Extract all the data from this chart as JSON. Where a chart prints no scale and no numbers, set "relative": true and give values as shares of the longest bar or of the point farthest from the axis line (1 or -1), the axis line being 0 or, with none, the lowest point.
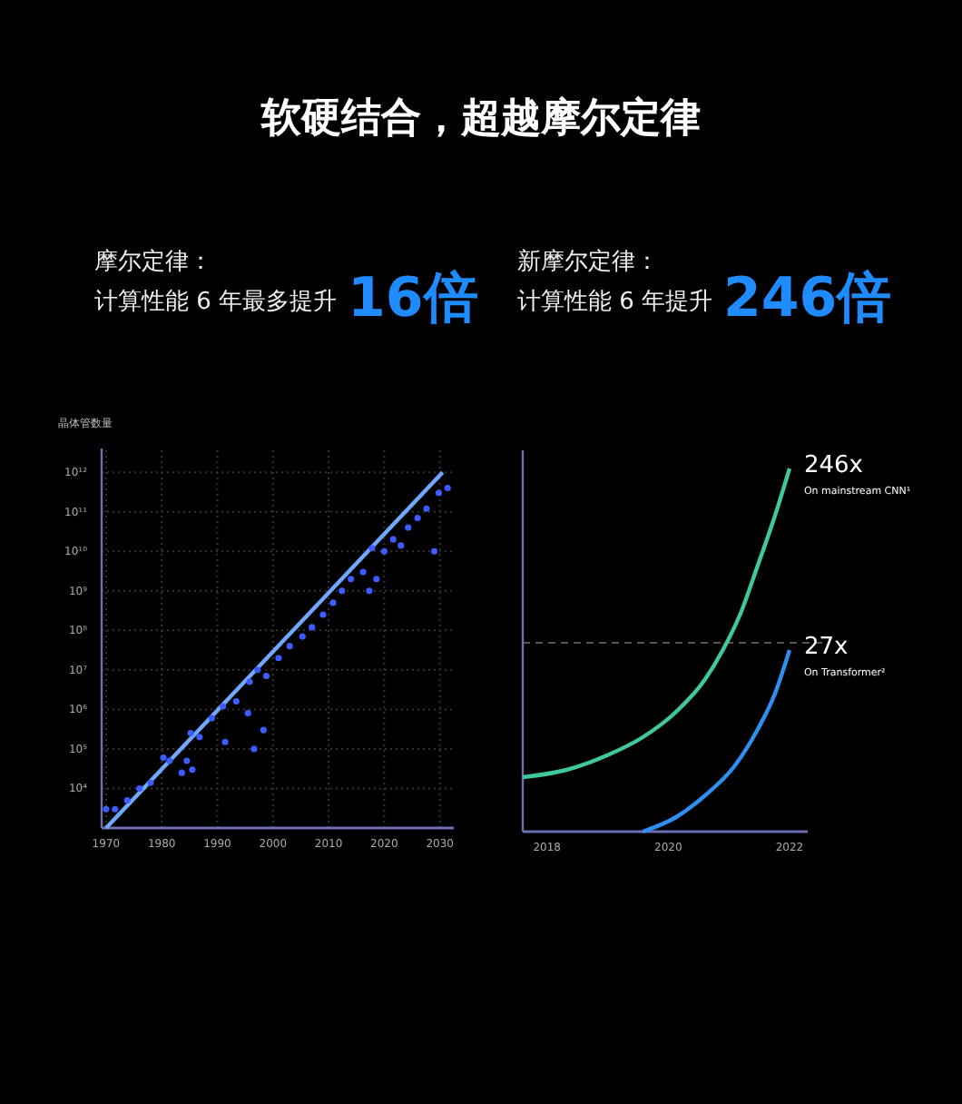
{
  "chart_data": [
    {
      "type": "scatter",
      "title": "软硬结合，超越摩尔定律",
      "annotations": [
        "摩尔定律：",
        "计算性能 6 年最多提升",
        "16倍"
      ],
      "ylabel": "晶体管数量",
      "log": "y",
      "grid": true,
      "xlim": [
        1969.2,
        2032.5
      ],
      "xticks": [
        1970,
        1980,
        1990,
        2000,
        2010,
        2020,
        2030
      ],
      "ylim": [
        1000.0,
        4000000000000.0
      ],
      "yticks": [
        {
          "value": 10000.0,
          "label": "10⁴"
        },
        {
          "value": 100000.0,
          "label": "10⁵"
        },
        {
          "value": 1000000.0,
          "label": "10⁶"
        },
        {
          "value": 10000000.0,
          "label": "10⁷"
        },
        {
          "value": 100000000.0,
          "label": "10⁸"
        },
        {
          "value": 1000000000.0,
          "label": "10⁹"
        },
        {
          "value": 10000000000.0,
          "label": "10¹⁰"
        },
        {
          "value": 100000000000.0,
          "label": "10¹¹"
        },
        {
          "value": 1000000000000.0,
          "label": "10¹²"
        }
      ],
      "series": [
        {
          "marker": "circle",
          "color": "#3d5cff",
          "x": [
            1970,
            1971.6,
            1973.8,
            1976,
            1978,
            1980.3,
            1981.4,
            1983.6,
            1984.5,
            1985.5,
            1985.2,
            1986.8,
            1989,
            1991,
            1991.4,
            1993.4,
            1995.5,
            1995.8,
            1996.6,
            1997.2,
            1998.3,
            1998.8,
            2001,
            2003,
            2005.3,
            2007,
            2009,
            2010.8,
            2012.4,
            2014,
            2016.2,
            2017.3,
            2017.8,
            2018.6,
            2020,
            2021.6,
            2023,
            2024.3,
            2026,
            2027.6,
            2029,
            2029.8,
            2031.4
          ],
          "values": [
            3000.0,
            3000.0,
            5000.0,
            10000.0,
            14000.0,
            60000.0,
            50000.0,
            25000.0,
            50000.0,
            30000.0,
            250000.0,
            200000.0,
            600000.0,
            1200000.0,
            150000.0,
            1600000.0,
            800000.0,
            5000000.0,
            100000.0,
            10000000.0,
            300000.0,
            7000000.0,
            20000000.0,
            40000000.0,
            70000000.0,
            120000000.0,
            250000000.0,
            500000000.0,
            1000000000.0,
            2000000000.0,
            3000000000.0,
            1000000000.0,
            12000000000.0,
            2000000000.0,
            10000000000.0,
            20000000000.0,
            14000000000.0,
            40000000000.0,
            70000000000.0,
            120000000000.0,
            10000000000.0,
            300000000000.0,
            400000000000.0
          ]
        },
        {
          "type": "line",
          "color": "#6fa8ff",
          "x": [
            1970,
            2030.5
          ],
          "values": [
            1000.0,
            1000000000000.0
          ]
        }
      ]
    },
    {
      "type": "line",
      "relative": true,
      "annotations": [
        "新摩尔定律：",
        "计算性能 6 年提升",
        "246倍",
        {
          "text": "246x",
          "x": 2022,
          "y": 1
        },
        "On mainstream CNN¹",
        {
          "text": "27x",
          "x": 2022,
          "y": 0.5
        },
        "On Transformer²"
      ],
      "xlim": [
        2017.6,
        2022.3
      ],
      "xticks": [
        2018,
        2020,
        2022
      ],
      "ref_lines": [
        {
          "axis": "y",
          "value": 0.52,
          "color": "#555555",
          "line_style": "dashed"
        }
      ],
      "series": [
        {
          "color": "#3fc8a0",
          "x": [
            2017.6,
            2018.32,
            2018.99,
            2019.58,
            2020.13,
            2020.61,
            2020.9,
            2021.19,
            2021.47,
            2021.76,
            2022
          ],
          "values": [
            0.15,
            0.17,
            0.21,
            0.26,
            0.33,
            0.42,
            0.5,
            0.6,
            0.73,
            0.87,
            1
          ]
        },
        {
          "color": "#2f8ff0",
          "x": [
            2019.58,
            2020.13,
            2020.61,
            2021.09,
            2021.47,
            2021.76,
            2022
          ],
          "values": [
            0,
            0.04,
            0.1,
            0.18,
            0.28,
            0.38,
            0.5
          ]
        }
      ]
    }
  ]
}
